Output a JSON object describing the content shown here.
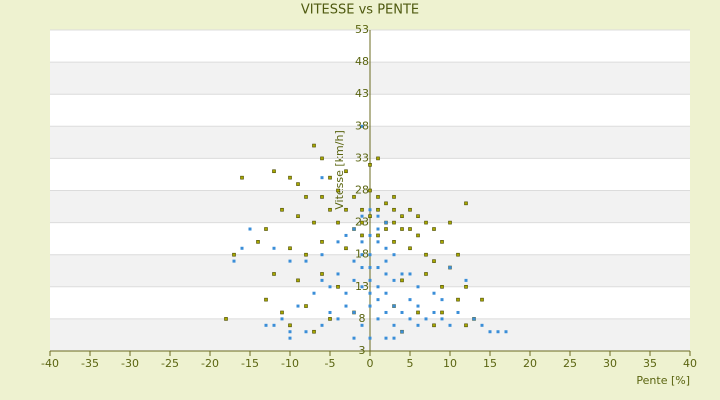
{
  "chart_data": {
    "type": "scatter",
    "title": "VITESSE vs PENTE",
    "x_label": "Pente [%]",
    "y_label": "Vitesse [km/h]",
    "xlim": [
      -40,
      40
    ],
    "xticks": [
      -40,
      -35,
      -30,
      -25,
      -20,
      -15,
      -10,
      -5,
      0,
      5,
      10,
      15,
      20,
      25,
      30,
      35,
      40
    ],
    "ylim": [
      3,
      53
    ],
    "yticks": [
      3,
      8,
      13,
      18,
      23,
      28,
      33,
      38,
      43,
      48,
      53
    ],
    "grid": true,
    "series": [
      {
        "color": "#a8a800",
        "x": [
          -7,
          -6,
          -16,
          -12,
          -10,
          -9,
          -5,
          -3,
          0,
          1,
          -8,
          -6,
          -4,
          -2,
          0,
          1,
          2,
          3,
          -5,
          -3,
          -1,
          1,
          3,
          4,
          5,
          6,
          7,
          -11,
          -13,
          -9,
          -7,
          -4,
          -2,
          2,
          4,
          5,
          6,
          8,
          9,
          12,
          10,
          -17,
          -14,
          -10,
          -8,
          -6,
          -3,
          3,
          5,
          7,
          8,
          11,
          -12,
          -9,
          -6,
          -4,
          4,
          7,
          9,
          12,
          10,
          -13,
          -11,
          -8,
          -5,
          -2,
          3,
          6,
          9,
          11,
          14,
          13,
          -18,
          -10,
          -7,
          4,
          8,
          12,
          -1,
          1,
          2,
          0,
          -1,
          3
        ],
        "values": [
          35,
          33,
          30,
          31,
          30,
          29,
          30,
          31,
          32,
          33,
          27,
          27,
          28,
          27,
          28,
          27,
          26,
          27,
          25,
          25,
          25,
          25,
          25,
          24,
          25,
          24,
          23,
          25,
          22,
          24,
          23,
          23,
          22,
          23,
          22,
          22,
          21,
          22,
          20,
          26,
          23,
          18,
          20,
          19,
          18,
          20,
          19,
          20,
          19,
          18,
          17,
          18,
          15,
          14,
          15,
          13,
          14,
          15,
          13,
          13,
          16,
          11,
          9,
          10,
          8,
          9,
          10,
          9,
          9,
          11,
          11,
          8,
          8,
          7,
          6,
          6,
          7,
          7,
          21,
          21,
          22,
          24,
          23,
          23
        ]
      },
      {
        "color": "#3a8ed8",
        "x": [
          -1,
          -6,
          -15,
          -16,
          -17,
          -12,
          -10,
          -8,
          -6,
          -4,
          -2,
          -1,
          0,
          1,
          2,
          -3,
          -1,
          1,
          2,
          3,
          0,
          -2,
          -1,
          1,
          2,
          3,
          4,
          0,
          -1,
          -3,
          -5,
          -7,
          -9,
          -11,
          -12,
          -10,
          -8,
          -6,
          -4,
          -2,
          0,
          1,
          2,
          3,
          4,
          5,
          6,
          7,
          8,
          9,
          10,
          11,
          12,
          10,
          13,
          15,
          16,
          17,
          14,
          6,
          4,
          2,
          0,
          -2,
          -1,
          1,
          3,
          5,
          -3,
          -5,
          0,
          1,
          2,
          -2,
          0,
          1,
          -1,
          0,
          2,
          6,
          5,
          -4,
          -6,
          8,
          9,
          -13,
          -10,
          3
        ],
        "values": [
          38,
          30,
          22,
          19,
          17,
          19,
          17,
          17,
          18,
          20,
          22,
          24,
          25,
          24,
          23,
          21,
          20,
          20,
          19,
          18,
          18,
          17,
          16,
          16,
          15,
          14,
          15,
          14,
          13,
          12,
          13,
          12,
          10,
          8,
          7,
          6,
          6,
          7,
          8,
          9,
          10,
          11,
          12,
          10,
          9,
          11,
          10,
          8,
          9,
          8,
          7,
          9,
          14,
          16,
          8,
          6,
          6,
          6,
          7,
          7,
          6,
          5,
          5,
          5,
          7,
          8,
          7,
          8,
          10,
          9,
          12,
          13,
          17,
          14,
          21,
          22,
          18,
          16,
          9,
          13,
          15,
          15,
          14,
          12,
          11,
          7,
          5,
          5
        ]
      }
    ]
  }
}
